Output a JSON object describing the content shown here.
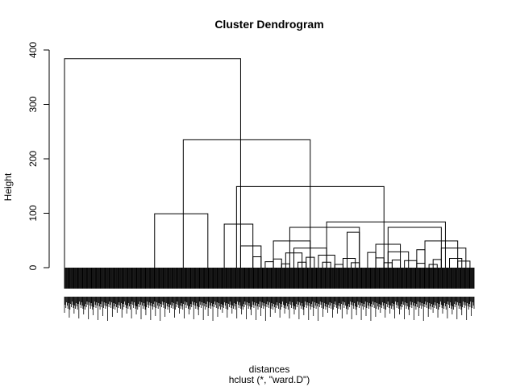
{
  "chart_data": {
    "type": "dendrogram",
    "title": "Cluster Dendrogram",
    "xlabel": "distances",
    "sublabel": "hclust (*, \"ward.D\")",
    "ylabel": "Height",
    "ylim": [
      0,
      400
    ],
    "yticks": [
      0,
      100,
      200,
      300,
      400
    ],
    "leaf_count": 600,
    "merges": [
      {
        "height": 384,
        "x_left": 0.0,
        "x_right": 0.43
      },
      {
        "height": 235,
        "x_left": 0.29,
        "x_right": 0.6
      },
      {
        "height": 149,
        "x_left": 0.42,
        "x_right": 0.78
      },
      {
        "height": 99,
        "x_left": 0.22,
        "x_right": 0.35
      },
      {
        "height": 84,
        "x_left": 0.64,
        "x_right": 0.93
      },
      {
        "height": 80,
        "x_left": 0.39,
        "x_right": 0.46
      },
      {
        "height": 74,
        "x_left": 0.55,
        "x_right": 0.72
      },
      {
        "height": 74,
        "x_left": 0.79,
        "x_right": 0.92
      },
      {
        "height": 65,
        "x_left": 0.69,
        "x_right": 0.72
      },
      {
        "height": 49,
        "x_left": 0.51,
        "x_right": 0.6
      },
      {
        "height": 49,
        "x_left": 0.88,
        "x_right": 0.96
      },
      {
        "height": 43,
        "x_left": 0.76,
        "x_right": 0.82
      },
      {
        "height": 40,
        "x_left": 0.43,
        "x_right": 0.48
      },
      {
        "height": 36,
        "x_left": 0.56,
        "x_right": 0.64
      },
      {
        "height": 36,
        "x_left": 0.92,
        "x_right": 0.98
      },
      {
        "height": 33,
        "x_left": 0.86,
        "x_right": 0.88
      },
      {
        "height": 29,
        "x_left": 0.79,
        "x_right": 0.84
      },
      {
        "height": 28,
        "x_left": 0.74,
        "x_right": 0.76
      },
      {
        "height": 27,
        "x_left": 0.54,
        "x_right": 0.58
      },
      {
        "height": 23,
        "x_left": 0.62,
        "x_right": 0.66
      },
      {
        "height": 20,
        "x_left": 0.46,
        "x_right": 0.48
      },
      {
        "height": 19,
        "x_left": 0.59,
        "x_right": 0.61
      },
      {
        "height": 18,
        "x_left": 0.76,
        "x_right": 0.78
      },
      {
        "height": 17,
        "x_left": 0.68,
        "x_right": 0.71
      },
      {
        "height": 17,
        "x_left": 0.94,
        "x_right": 0.97
      },
      {
        "height": 16,
        "x_left": 0.51,
        "x_right": 0.53
      },
      {
        "height": 15,
        "x_left": 0.9,
        "x_right": 0.92
      },
      {
        "height": 14,
        "x_left": 0.8,
        "x_right": 0.82
      },
      {
        "height": 13,
        "x_left": 0.83,
        "x_right": 0.86
      },
      {
        "height": 12,
        "x_left": 0.96,
        "x_right": 0.99
      },
      {
        "height": 11,
        "x_left": 0.49,
        "x_right": 0.51
      },
      {
        "height": 10,
        "x_left": 0.57,
        "x_right": 0.59
      },
      {
        "height": 10,
        "x_left": 0.63,
        "x_right": 0.65
      },
      {
        "height": 9,
        "x_left": 0.7,
        "x_right": 0.72
      },
      {
        "height": 9,
        "x_left": 0.78,
        "x_right": 0.8
      },
      {
        "height": 8,
        "x_left": 0.86,
        "x_right": 0.88
      },
      {
        "height": 7,
        "x_left": 0.53,
        "x_right": 0.55
      },
      {
        "height": 6,
        "x_left": 0.66,
        "x_right": 0.68
      },
      {
        "height": 6,
        "x_left": 0.89,
        "x_right": 0.91
      }
    ]
  }
}
